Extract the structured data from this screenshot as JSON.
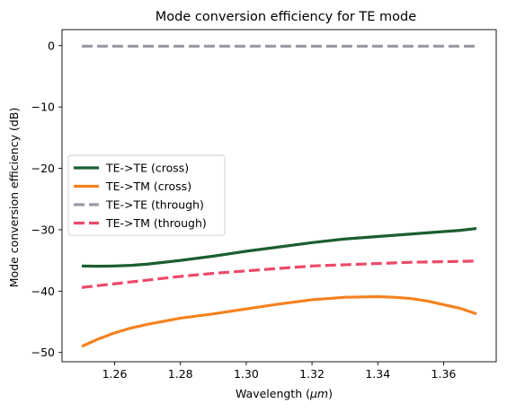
{
  "chart_data": {
    "type": "line",
    "title": "Mode conversion efficiency for TE mode",
    "xlabel_main": "Wavelength (",
    "xlabel_unit": "μm",
    "xlabel_end": ")",
    "ylabel": "Mode conversion efficiency (dB)",
    "xlim": [
      1.244,
      1.376
    ],
    "ylim": [
      -51.5,
      2.6
    ],
    "xticks": [
      1.26,
      1.28,
      1.3,
      1.32,
      1.34,
      1.36
    ],
    "xtick_labels": [
      "1.26",
      "1.28",
      "1.30",
      "1.32",
      "1.34",
      "1.36"
    ],
    "yticks": [
      0,
      -10,
      -20,
      -30,
      -40,
      -50
    ],
    "ytick_labels": [
      "0",
      "−10",
      "−20",
      "−30",
      "−40",
      "−50"
    ],
    "legend_position": "center-left",
    "x": [
      1.25,
      1.255,
      1.26,
      1.265,
      1.27,
      1.28,
      1.29,
      1.3,
      1.31,
      1.32,
      1.33,
      1.34,
      1.345,
      1.35,
      1.355,
      1.36,
      1.365,
      1.37
    ],
    "series": [
      {
        "name": "TE->TE (cross)",
        "color": "#1a5e30",
        "style": "solid",
        "values": [
          -35.9,
          -35.95,
          -35.9,
          -35.8,
          -35.6,
          -35.0,
          -34.3,
          -33.5,
          -32.8,
          -32.1,
          -31.5,
          -31.1,
          -30.9,
          -30.7,
          -30.5,
          -30.3,
          -30.1,
          -29.8
        ]
      },
      {
        "name": "TE->TM (cross)",
        "color": "#f5821f",
        "style": "solid",
        "values": [
          -49.0,
          -47.8,
          -46.8,
          -46.0,
          -45.4,
          -44.4,
          -43.7,
          -42.9,
          -42.1,
          -41.4,
          -41.0,
          -40.9,
          -41.0,
          -41.2,
          -41.6,
          -42.2,
          -42.8,
          -43.7
        ]
      },
      {
        "name": "TE->TE (through)",
        "color": "#9b9ba8",
        "style": "dashed",
        "values": [
          -0.1,
          -0.1,
          -0.1,
          -0.1,
          -0.1,
          -0.1,
          -0.1,
          -0.1,
          -0.1,
          -0.1,
          -0.1,
          -0.1,
          -0.1,
          -0.1,
          -0.1,
          -0.1,
          -0.1,
          -0.1
        ]
      },
      {
        "name": "TE->TM (through)",
        "color": "#ec4a6a",
        "style": "dashed",
        "values": [
          -39.4,
          -39.1,
          -38.8,
          -38.5,
          -38.2,
          -37.6,
          -37.1,
          -36.7,
          -36.3,
          -35.9,
          -35.7,
          -35.5,
          -35.4,
          -35.3,
          -35.25,
          -35.2,
          -35.15,
          -35.1
        ]
      }
    ]
  }
}
